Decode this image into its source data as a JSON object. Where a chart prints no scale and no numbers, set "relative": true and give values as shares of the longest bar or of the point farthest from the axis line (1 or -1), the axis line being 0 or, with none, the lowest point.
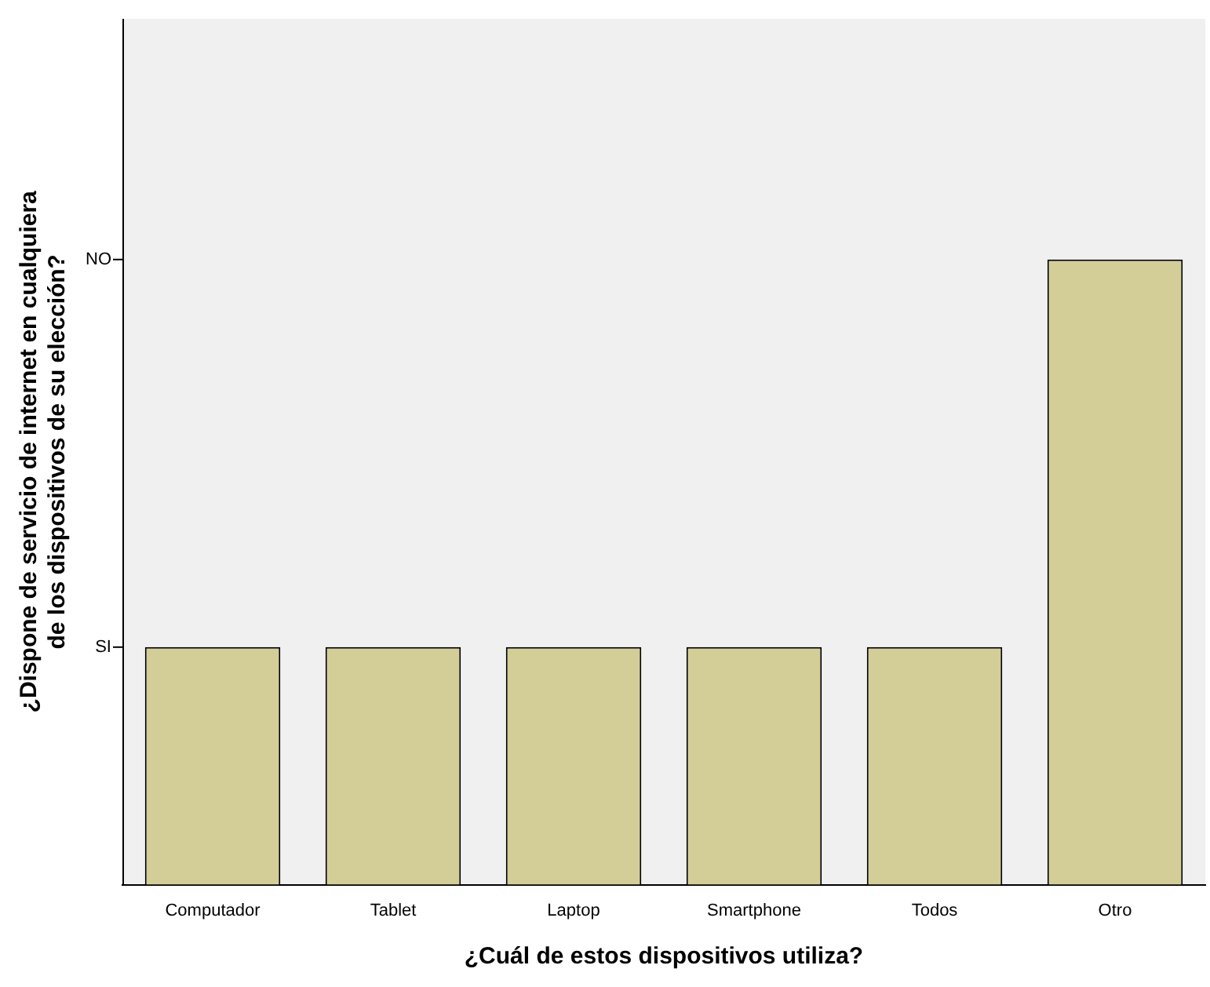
{
  "chart_data": {
    "type": "bar",
    "xlabel": "¿Cuál de estos dispositivos utiliza?",
    "ylabel": "¿Dispone de servicio de internet en cualquiera de los dispositivos de su elección?",
    "categories": [
      "Computador",
      "Tablet",
      "Laptop",
      "Smartphone",
      "Todos",
      "Otro"
    ],
    "values": [
      0.38,
      0.38,
      0.38,
      0.38,
      0.38,
      1
    ],
    "color": "#d3ce98",
    "relative": true,
    "annotations": [
      "SI",
      "NO"
    ],
    "grid": false,
    "legend": false
  }
}
